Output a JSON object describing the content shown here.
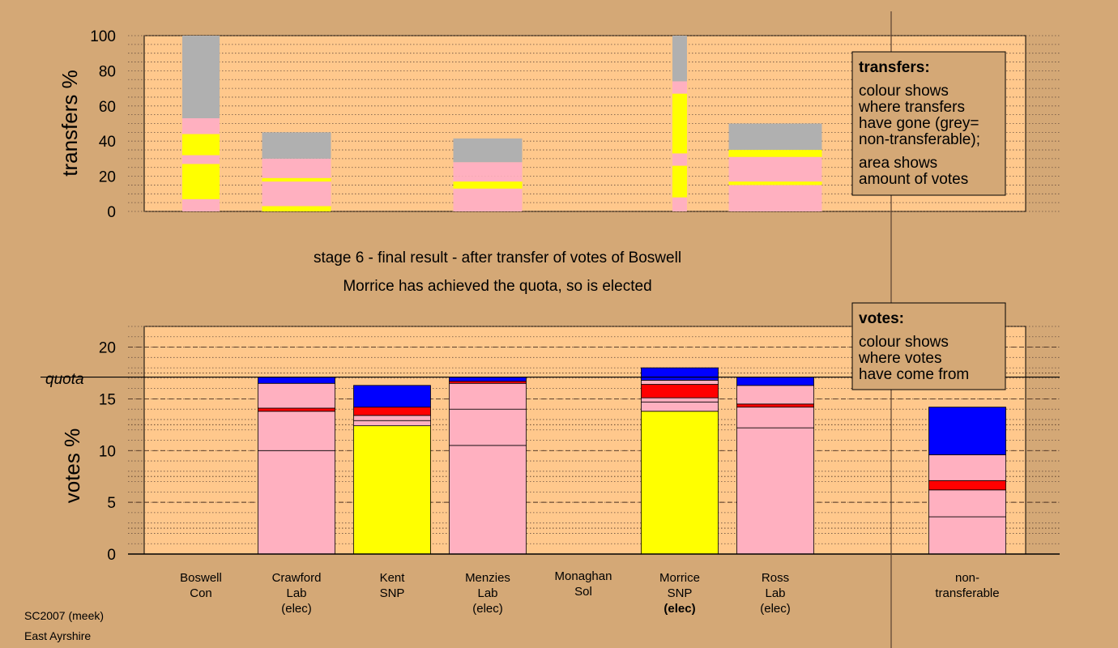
{
  "chart_data": [
    {
      "type": "bar",
      "stacked": true,
      "ylabel": "transfers %",
      "ylim": [
        0,
        100
      ],
      "yticks": [
        0,
        20,
        40,
        60,
        80,
        100
      ],
      "grid": "dotted",
      "categories": [
        "Boswell",
        "Crawford",
        "Kent",
        "Menzies",
        "Monaghan",
        "Morrice",
        "Ross"
      ],
      "bars": [
        {
          "candidate": "Boswell",
          "width": 46,
          "segments": [
            {
              "color": "#ffb0c0",
              "value": 7
            },
            {
              "color": "#ffff00",
              "value": 20
            },
            {
              "color": "#ffb0c0",
              "value": 5
            },
            {
              "color": "#ffff00",
              "value": 12
            },
            {
              "color": "#ffb0c0",
              "value": 9
            },
            {
              "color": "#b0b0b0",
              "value": 47
            }
          ]
        },
        {
          "candidate": "Crawford",
          "width": 85,
          "segments": [
            {
              "color": "#ffff00",
              "value": 3
            },
            {
              "color": "#ffb0c0",
              "value": 14
            },
            {
              "color": "#ffff00",
              "value": 2
            },
            {
              "color": "#ffb0c0",
              "value": 11
            },
            {
              "color": "#b0b0b0",
              "value": 15
            }
          ]
        },
        {
          "candidate": "Menzies",
          "width": 85,
          "segments": [
            {
              "color": "#ffb0c0",
              "value": 13
            },
            {
              "color": "#ffff00",
              "value": 4
            },
            {
              "color": "#ffb0c0",
              "value": 3
            },
            {
              "color": "#ffb0c0",
              "value": 8
            },
            {
              "color": "#b0b0b0",
              "value": 13.5
            }
          ]
        },
        {
          "candidate": "Morrice",
          "width": 18,
          "segments": [
            {
              "color": "#ffb0c0",
              "value": 8
            },
            {
              "color": "#ffff00",
              "value": 18
            },
            {
              "color": "#ffb0c0",
              "value": 7
            },
            {
              "color": "#ffff00",
              "value": 34
            },
            {
              "color": "#ffb0c0",
              "value": 7
            },
            {
              "color": "#b0b0b0",
              "value": 26
            }
          ]
        },
        {
          "candidate": "Ross",
          "width": 115,
          "segments": [
            {
              "color": "#ffb0c0",
              "value": 15
            },
            {
              "color": "#ffff00",
              "value": 2
            },
            {
              "color": "#ffb0c0",
              "value": 14
            },
            {
              "color": "#ffff00",
              "value": 4
            },
            {
              "color": "#b0b0b0",
              "value": 15
            }
          ]
        }
      ],
      "legend": {
        "title": "transfers:",
        "lines": [
          "colour shows",
          "where transfers",
          "have gone (grey=",
          "non-transferable);",
          "",
          "area shows",
          "amount of votes"
        ]
      }
    },
    {
      "type": "bar",
      "stacked": true,
      "ylabel": "votes %",
      "ylim": [
        0,
        22
      ],
      "yticks": [
        0,
        5,
        10,
        15,
        20
      ],
      "grid": "dotted",
      "quota": 17.1,
      "quota_label": "quota",
      "categories": [
        "Boswell",
        "Crawford",
        "Kent",
        "Menzies",
        "Monaghan",
        "Morrice",
        "Ross",
        "non-transferable"
      ],
      "series": [
        {
          "candidate": "Crawford",
          "segments": [
            {
              "color": "#ffb0c0",
              "value": 10.0
            },
            {
              "color": "#ffb0c0",
              "value": 3.8
            },
            {
              "color": "#ff0000",
              "value": 0.3
            },
            {
              "color": "#ffb0c0",
              "value": 2.4
            },
            {
              "color": "#0000ff",
              "value": 0.6
            }
          ]
        },
        {
          "candidate": "Kent",
          "segments": [
            {
              "color": "#ffff00",
              "value": 12.4
            },
            {
              "color": "#ffb0c0",
              "value": 0.5
            },
            {
              "color": "#ffb0c0",
              "value": 0.5
            },
            {
              "color": "#ff0000",
              "value": 0.8
            },
            {
              "color": "#0000ff",
              "value": 2.1
            }
          ]
        },
        {
          "candidate": "Menzies",
          "segments": [
            {
              "color": "#ffb0c0",
              "value": 10.5
            },
            {
              "color": "#ffb0c0",
              "value": 3.5
            },
            {
              "color": "#ffb0c0",
              "value": 2.5
            },
            {
              "color": "#ff0000",
              "value": 0.2
            },
            {
              "color": "#0000ff",
              "value": 0.4
            }
          ]
        },
        {
          "candidate": "Morrice",
          "segments": [
            {
              "color": "#ffff00",
              "value": 13.8
            },
            {
              "color": "#ffb0c0",
              "value": 0.9
            },
            {
              "color": "#ffb0c0",
              "value": 0.4
            },
            {
              "color": "#ff0000",
              "value": 1.3
            },
            {
              "color": "#ffb0c0",
              "value": 0.4
            },
            {
              "color": "#0000ff",
              "value": 1.2
            }
          ]
        },
        {
          "candidate": "Ross",
          "segments": [
            {
              "color": "#ffb0c0",
              "value": 12.2
            },
            {
              "color": "#ffb0c0",
              "value": 2.0
            },
            {
              "color": "#ff0000",
              "value": 0.3
            },
            {
              "color": "#ffb0c0",
              "value": 1.8
            },
            {
              "color": "#0000ff",
              "value": 0.8
            }
          ]
        },
        {
          "candidate": "non-transferable",
          "segments": [
            {
              "color": "#ffb0c0",
              "value": 3.6
            },
            {
              "color": "#ffb0c0",
              "value": 2.6
            },
            {
              "color": "#ff0000",
              "value": 0.9
            },
            {
              "color": "#ffb0c0",
              "value": 2.5
            },
            {
              "color": "#0000ff",
              "value": 4.6
            }
          ]
        }
      ],
      "legend": {
        "title": "votes:",
        "lines": [
          "colour shows",
          "where votes",
          "have come from"
        ]
      }
    }
  ],
  "subtitle_lines": [
    "stage 6 - final result - after transfer of votes of Boswell",
    "Morrice has achieved the quota, so is elected"
  ],
  "candidates": [
    {
      "lines": [
        "Boswell",
        "Con"
      ],
      "bold_last": false
    },
    {
      "lines": [
        "Crawford",
        "Lab",
        "(elec)"
      ],
      "bold_last": false
    },
    {
      "lines": [
        "Kent",
        "SNP"
      ],
      "bold_last": false
    },
    {
      "lines": [
        "Menzies",
        "Lab",
        "(elec)"
      ],
      "bold_last": false
    },
    {
      "lines": [
        "Monaghan",
        "Sol"
      ],
      "bold_last": false
    },
    {
      "lines": [
        "Morrice",
        "SNP",
        "(elec)"
      ],
      "bold_last": true
    },
    {
      "lines": [
        "Ross",
        "Lab",
        "(elec)"
      ],
      "bold_last": false
    },
    {
      "lines": [
        "non-",
        "transferable"
      ],
      "bold_last": false
    }
  ],
  "footer": {
    "line1": "SC2007 (meek)",
    "line2": "East Ayrshire"
  },
  "colors": {
    "background": "#d4a876",
    "plot_area": "#ffc88c",
    "legend_box": "#d4a876"
  }
}
